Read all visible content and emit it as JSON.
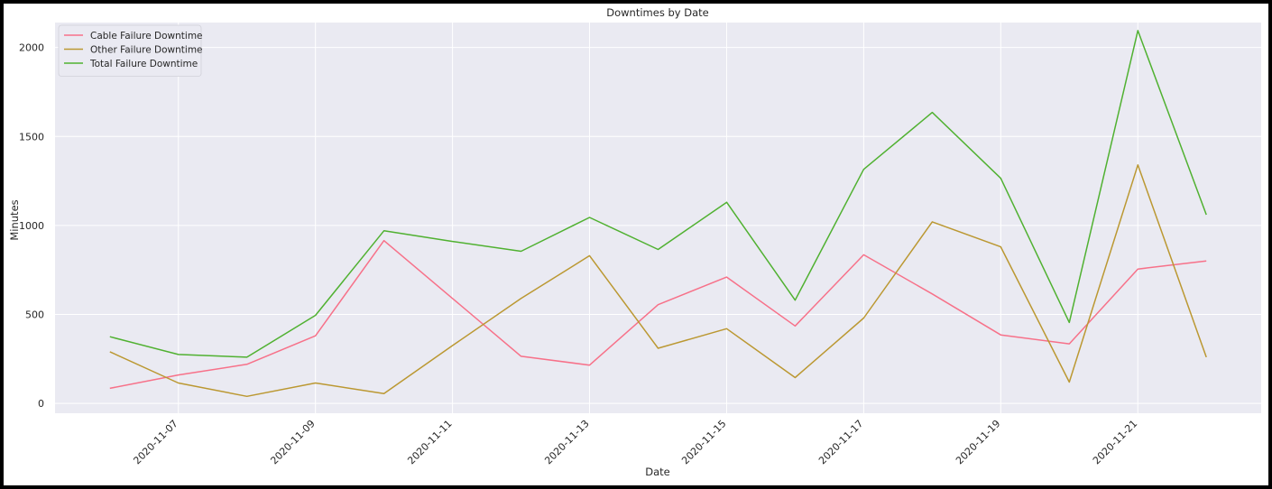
{
  "chart_data": {
    "type": "line",
    "title": "Downtimes by Date",
    "xlabel": "Date",
    "ylabel": "Minutes",
    "x": [
      "2020-11-06",
      "2020-11-07",
      "2020-11-08",
      "2020-11-09",
      "2020-11-10",
      "2020-11-11",
      "2020-11-12",
      "2020-11-13",
      "2020-11-14",
      "2020-11-15",
      "2020-11-16",
      "2020-11-17",
      "2020-11-18",
      "2020-11-19",
      "2020-11-20",
      "2020-11-21",
      "2020-11-22"
    ],
    "xticks": [
      "2020-11-07",
      "2020-11-09",
      "2020-11-11",
      "2020-11-13",
      "2020-11-15",
      "2020-11-17",
      "2020-11-19",
      "2020-11-21"
    ],
    "yticks": [
      0,
      500,
      1000,
      1500,
      2000
    ],
    "ylim": [
      -55,
      2140
    ],
    "grid": true,
    "legend_position": "upper-left",
    "background": "#eaeaf2",
    "series": [
      {
        "name": "Cable Failure Downtime",
        "color": "#f77189",
        "values": [
          85,
          160,
          220,
          380,
          915,
          590,
          265,
          215,
          555,
          710,
          435,
          835,
          615,
          385,
          335,
          755,
          800
        ]
      },
      {
        "name": "Other Failure Downtime",
        "color": "#bb9832",
        "values": [
          290,
          115,
          40,
          115,
          55,
          325,
          590,
          830,
          310,
          420,
          145,
          480,
          1020,
          880,
          120,
          1340,
          260
        ]
      },
      {
        "name": "Total Failure Downtime",
        "color": "#50b131",
        "values": [
          375,
          275,
          260,
          495,
          970,
          910,
          855,
          1045,
          865,
          1130,
          580,
          1315,
          1635,
          1265,
          455,
          2095,
          1060
        ]
      }
    ]
  }
}
